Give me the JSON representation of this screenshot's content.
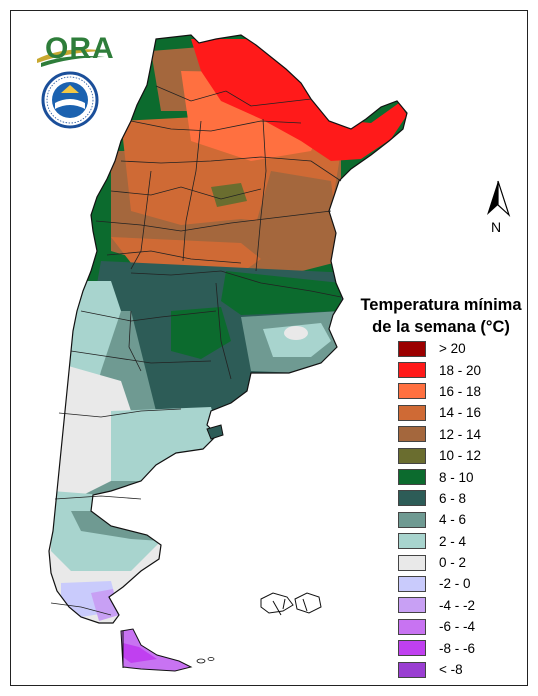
{
  "logo": {
    "text": "ORA"
  },
  "seal": {
    "icon": "smn-seal-icon",
    "ring_text": "SERVICIO METEOROLOGICO NACIONAL",
    "bottom_text": "ARGENTINA"
  },
  "north_arrow": {
    "label": "N",
    "icon": "north-arrow-icon"
  },
  "legend": {
    "title_line1": "Temperatura mínima",
    "title_line2": "de la semana (°C)",
    "items": [
      {
        "label": "> 20",
        "color": "#9b0000"
      },
      {
        "label": "18 - 20",
        "color": "#ff1a1a"
      },
      {
        "label": "16 - 18",
        "color": "#ff7040"
      },
      {
        "label": "14 - 16",
        "color": "#cf6a35"
      },
      {
        "label": "12 - 14",
        "color": "#a4673d"
      },
      {
        "label": "10 - 12",
        "color": "#6a6d2f"
      },
      {
        "label": "8 - 10",
        "color": "#0c6b2e"
      },
      {
        "label": "6 - 8",
        "color": "#2d5c57"
      },
      {
        "label": "4 - 6",
        "color": "#6f9a92"
      },
      {
        "label": "2 - 4",
        "color": "#a8d4ce"
      },
      {
        "label": "0 - 2",
        "color": "#e9e9e9"
      },
      {
        "label": "-2 - 0",
        "color": "#c9cbfc"
      },
      {
        "label": "-4 - -2",
        "color": "#c8a0f4"
      },
      {
        "label": "-6 - -4",
        "color": "#c873f2"
      },
      {
        "label": "-8 - -6",
        "color": "#c040f0"
      },
      {
        "label": "< -8",
        "color": "#9a3ed2"
      }
    ]
  }
}
